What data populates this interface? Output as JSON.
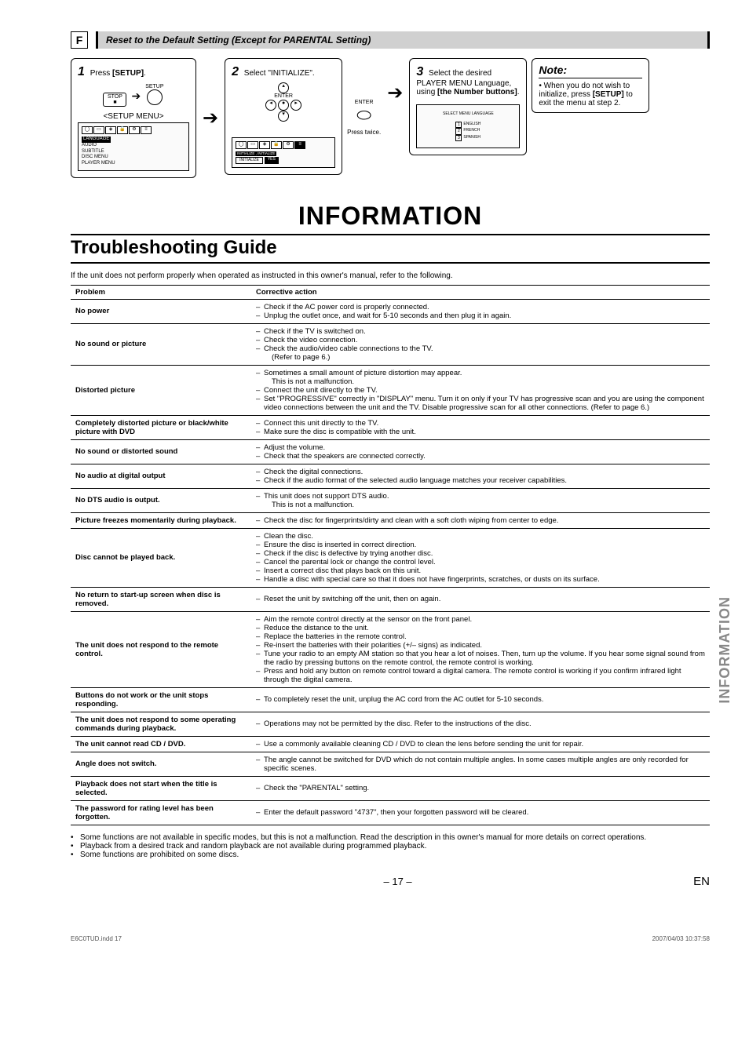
{
  "section": {
    "letter": "F",
    "title": "Reset to the Default Setting (Except for PARENTAL Setting)"
  },
  "steps": {
    "s1": {
      "num": "1",
      "text_a": "Press ",
      "text_b": "[SETUP]",
      "text_c": ".",
      "btn_label_setup": "SETUP",
      "btn_label_stop": "STOP",
      "menu_label": "<SETUP MENU>",
      "osd_header": "LANGUAGE",
      "osd_items": [
        "AUDIO",
        "SUBTITLE",
        "DISC MENU",
        "PLAYER MENU"
      ]
    },
    "s2": {
      "num": "2",
      "text_a": "Select \"INITIALIZE\".",
      "enter_label": "ENTER",
      "press_twice": "Press twice.",
      "osd_header": "INITIALIZE , INITIALIZE",
      "osd_row_a": "INITIALIZE",
      "osd_row_b": "YES"
    },
    "s3": {
      "num": "3",
      "text_a": "Select the desired PLAYER MENU Language, using ",
      "text_b": "[the Number buttons]",
      "text_c": ".",
      "enter_label": "ENTER",
      "osd_header": "SELECT MENU LANGUAGE",
      "opts": [
        {
          "n": "1",
          "l": "ENGLISH"
        },
        {
          "n": "2",
          "l": "FRENCH"
        },
        {
          "n": "3",
          "l": "SPANISH"
        }
      ]
    },
    "note": {
      "title": "Note:",
      "body_a": "When you do not wish to initialize, press ",
      "body_b": "[SETUP]",
      "body_c": " to exit the menu at step 2."
    }
  },
  "titles": {
    "main": "INFORMATION",
    "sub": "Troubleshooting Guide",
    "side": "INFORMATION"
  },
  "intro": "If the unit does not perform properly when operated as instructed in this owner's manual, refer to the following.",
  "table": {
    "col_problem": "Problem",
    "col_action": "Corrective action",
    "rows": [
      {
        "problem": "No power",
        "actions": [
          "Check if the AC power cord is properly connected.",
          "Unplug the outlet once, and wait for 5-10 seconds and then plug it in again."
        ]
      },
      {
        "problem": "No sound or picture",
        "actions": [
          "Check if the TV is switched on.",
          "Check the video connection.",
          "Check the audio/video cable connections to the TV.\n(Refer to page 6.)"
        ]
      },
      {
        "problem": "Distorted picture",
        "actions": [
          "Sometimes a small amount of picture distortion may appear.\nThis is not a malfunction.",
          "Connect the unit directly to the TV.",
          "Set \"PROGRESSIVE\" correctly in \"DISPLAY\" menu. Turn it on only if your TV has progressive scan and you are using the component video connections between the unit and the TV. Disable progressive scan for all other connections. (Refer to page 6.)"
        ]
      },
      {
        "problem": "Completely distorted picture or black/white picture with DVD",
        "actions": [
          "Connect this unit directly to the TV.",
          "Make sure the disc is compatible with the unit."
        ]
      },
      {
        "problem": "No sound or distorted sound",
        "actions": [
          "Adjust the volume.",
          "Check that the speakers are connected correctly."
        ]
      },
      {
        "problem": "No audio at digital output",
        "actions": [
          "Check the digital connections.",
          "Check if the audio format of the selected audio language matches your receiver capabilities."
        ]
      },
      {
        "problem": "No DTS audio is output.",
        "actions": [
          "This unit does not support DTS audio.\nThis is not a malfunction."
        ]
      },
      {
        "problem": "Picture freezes momentarily during playback.",
        "actions": [
          "Check the disc for fingerprints/dirty and clean with a soft cloth wiping from center to edge."
        ]
      },
      {
        "problem": "Disc cannot be played back.",
        "actions": [
          "Clean the disc.",
          "Ensure the disc is inserted in correct direction.",
          "Check if the disc is defective by trying another disc.",
          "Cancel the parental lock or change the control level.",
          "Insert a correct disc that plays back on this unit.",
          "Handle a disc with special care so that it does not have fingerprints, scratches, or dusts on its surface."
        ]
      },
      {
        "problem": "No return to start-up screen when disc is removed.",
        "actions": [
          "Reset the unit by switching off the unit, then on again."
        ]
      },
      {
        "problem": "The unit does not respond to the remote control.",
        "actions": [
          "Aim the remote control directly at the sensor on the front panel.",
          "Reduce the distance to the unit.",
          "Replace the batteries in the remote control.",
          "Re-insert the batteries with their polarities (+/– signs) as indicated.",
          "Tune your radio to an empty AM station so that you hear a lot of noises. Then, turn up the volume. If you hear some signal sound from the radio by pressing buttons on the remote control, the remote control is working.",
          "Press and hold any button on remote control toward a digital camera. The remote control is working if you confirm infrared light through the digital camera."
        ]
      },
      {
        "problem": "Buttons do not work or the unit stops responding.",
        "actions": [
          "To completely reset the unit, unplug the AC cord from the AC outlet for 5-10 seconds."
        ]
      },
      {
        "problem": "The unit does not respond to some operating commands during playback.",
        "actions": [
          "Operations may not be permitted by the disc. Refer to the instructions of the disc."
        ]
      },
      {
        "problem": "The unit cannot read CD / DVD.",
        "actions": [
          "Use a commonly available cleaning CD / DVD to clean the lens before sending the unit for repair."
        ]
      },
      {
        "problem": "Angle does not switch.",
        "actions": [
          "The angle cannot be switched for DVD which do not contain multiple angles. In some cases multiple angles are only recorded for specific scenes."
        ]
      },
      {
        "problem": "Playback does not start when the title is selected.",
        "actions": [
          "Check the \"PARENTAL\" setting."
        ]
      },
      {
        "problem": "The password for rating level has been forgotten.",
        "actions": [
          "Enter the default password \"4737\", then your forgotten password will be cleared."
        ]
      }
    ]
  },
  "footnotes": [
    "Some functions are not available in specific modes, but this is not a malfunction. Read the description in this owner's manual  for more details on correct operations.",
    "Playback from a desired track and random playback are not available during programmed playback.",
    "Some functions are prohibited on some discs."
  ],
  "footer": {
    "page": "– 17 –",
    "lang": "EN",
    "doc_left": "E6C0TUD.indd   17",
    "doc_right": "2007/04/03   10:37:58"
  }
}
